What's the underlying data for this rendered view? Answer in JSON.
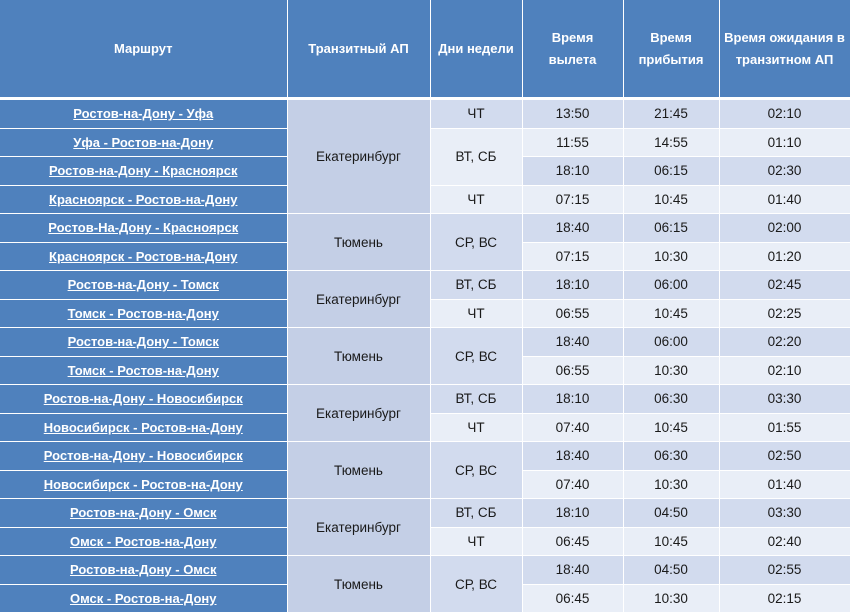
{
  "headers": {
    "route": "Маршрут",
    "transit": "Транзитный АП",
    "days": "Дни недели",
    "departure": "Время вылета",
    "arrival": "Время прибытия",
    "waiting": "Время ожидания в транзитном АП"
  },
  "rows": [
    {
      "route": "Ростов-на-Дону - Уфа",
      "dep": "13:50",
      "arr": "21:45",
      "wait": "02:10"
    },
    {
      "route": "Уфа - Ростов-на-Дону",
      "dep": "11:55",
      "arr": "14:55",
      "wait": "01:10"
    },
    {
      "route": "Ростов-на-Дону - Красноярск",
      "dep": "18:10",
      "arr": "06:15",
      "wait": "02:30"
    },
    {
      "route": "Красноярск - Ростов-на-Дону",
      "dep": "07:15",
      "arr": "10:45",
      "wait": "01:40"
    },
    {
      "route": "Ростов-На-Дону - Красноярск",
      "dep": "18:40",
      "arr": "06:15",
      "wait": "02:00"
    },
    {
      "route": "Красноярск - Ростов-на-Дону",
      "dep": "07:15",
      "arr": "10:30",
      "wait": "01:20"
    },
    {
      "route": "Ростов-на-Дону - Томск",
      "dep": "18:10",
      "arr": "06:00",
      "wait": "02:45"
    },
    {
      "route": "Томск - Ростов-на-Дону",
      "dep": "06:55",
      "arr": "10:45",
      "wait": "02:25"
    },
    {
      "route": "Ростов-на-Дону - Томск",
      "dep": "18:40",
      "arr": "06:00",
      "wait": "02:20"
    },
    {
      "route": "Томск - Ростов-на-Дону",
      "dep": "06:55",
      "arr": "10:30",
      "wait": "02:10"
    },
    {
      "route": "Ростов-на-Дону - Новосибирск",
      "dep": "18:10",
      "arr": "06:30",
      "wait": "03:30"
    },
    {
      "route": "Новосибирск - Ростов-на-Дону",
      "dep": "07:40",
      "arr": "10:45",
      "wait": "01:55"
    },
    {
      "route": "Ростов-на-Дону - Новосибирск",
      "dep": "18:40",
      "arr": "06:30",
      "wait": "02:50"
    },
    {
      "route": "Новосибирск - Ростов-на-Дону",
      "dep": "07:40",
      "arr": "10:30",
      "wait": "01:40"
    },
    {
      "route": "Ростов-на-Дону - Омск",
      "dep": "18:10",
      "arr": "04:50",
      "wait": "03:30"
    },
    {
      "route": "Омск - Ростов-на-Дону",
      "dep": "06:45",
      "arr": "10:45",
      "wait": "02:40"
    },
    {
      "route": "Ростов-на-Дону - Омск",
      "dep": "18:40",
      "arr": "04:50",
      "wait": "02:55"
    },
    {
      "route": "Омск - Ростов-на-Дону",
      "dep": "06:45",
      "arr": "10:30",
      "wait": "02:15"
    }
  ],
  "transit_groups": [
    "Екатеринбург",
    "Тюмень",
    "Екатеринбург",
    "Тюмень",
    "Екатеринбург",
    "Тюмень",
    "Екатеринбург",
    "Тюмень"
  ],
  "days_groups": [
    "ЧТ",
    "ВТ, СБ",
    "ЧТ",
    "СР, ВС",
    "ВТ, СБ",
    "ЧТ",
    "СР, ВС",
    "ВТ, СБ",
    "ЧТ",
    "СР, ВС",
    "ВТ, СБ",
    "ЧТ",
    "СР, ВС"
  ]
}
